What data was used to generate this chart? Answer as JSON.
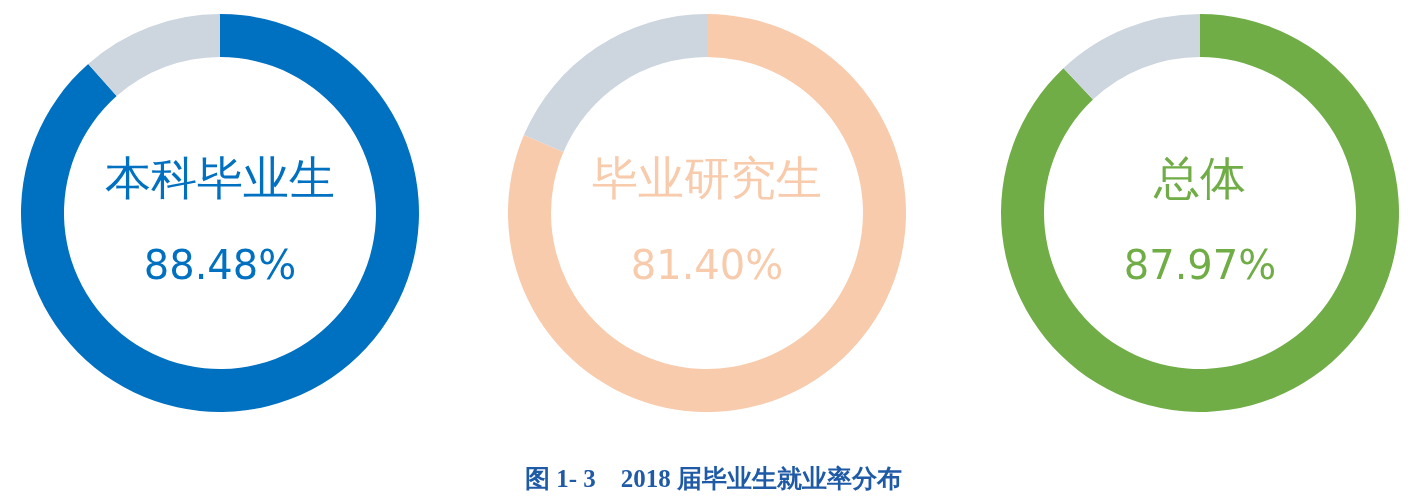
{
  "chart_data": [
    {
      "type": "donut",
      "title": "本科毕业生",
      "categories": [
        null,
        null
      ],
      "values": [
        88.48,
        11.52
      ],
      "colors": [
        "#0070c0",
        "#cdd5df"
      ],
      "value_labels": [
        "88.48%",
        null
      ]
    },
    {
      "type": "donut",
      "title": "毕业研究生",
      "categories": [
        null,
        null
      ],
      "values": [
        81.4,
        18.6
      ],
      "colors": [
        "#f7cbac",
        "#cdd5df"
      ],
      "value_labels": [
        "81.40%",
        null
      ],
      "annotations": [
        "图 1- 3　2018 届毕业生就业率分布"
      ]
    },
    {
      "type": "donut",
      "title": "总体",
      "categories": [
        null,
        null
      ],
      "values": [
        87.97,
        12.03
      ],
      "colors": [
        "#70ad47",
        "#cdd5df"
      ],
      "value_labels": [
        "87.97%",
        null
      ]
    }
  ]
}
